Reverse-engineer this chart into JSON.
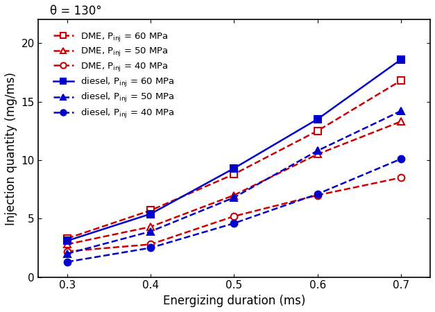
{
  "x": [
    0.3,
    0.4,
    0.5,
    0.6,
    0.7
  ],
  "dme_60": [
    3.3,
    5.7,
    8.8,
    12.5,
    16.8
  ],
  "dme_50": [
    2.8,
    4.3,
    7.0,
    10.5,
    13.3
  ],
  "dme_40": [
    2.2,
    2.8,
    5.2,
    7.0,
    8.5
  ],
  "diesel_60": [
    3.1,
    5.4,
    9.3,
    13.5,
    18.6
  ],
  "diesel_50": [
    2.0,
    3.9,
    6.8,
    10.8,
    14.2
  ],
  "diesel_40": [
    1.3,
    2.5,
    4.6,
    7.1,
    10.1
  ],
  "xlabel": "Energizing duration (ms)",
  "ylabel": "Injection quantity (mg/ms)",
  "annotation": "θ = 130°",
  "xlim": [
    0.265,
    0.735
  ],
  "ylim": [
    0,
    22
  ],
  "yticks": [
    0,
    5,
    10,
    15,
    20
  ],
  "xticks": [
    0.3,
    0.4,
    0.5,
    0.6,
    0.7
  ],
  "color_dme": "#cc0000",
  "color_diesel": "#0000cc",
  "figsize": [
    6.27,
    4.5
  ],
  "dpi": 100
}
